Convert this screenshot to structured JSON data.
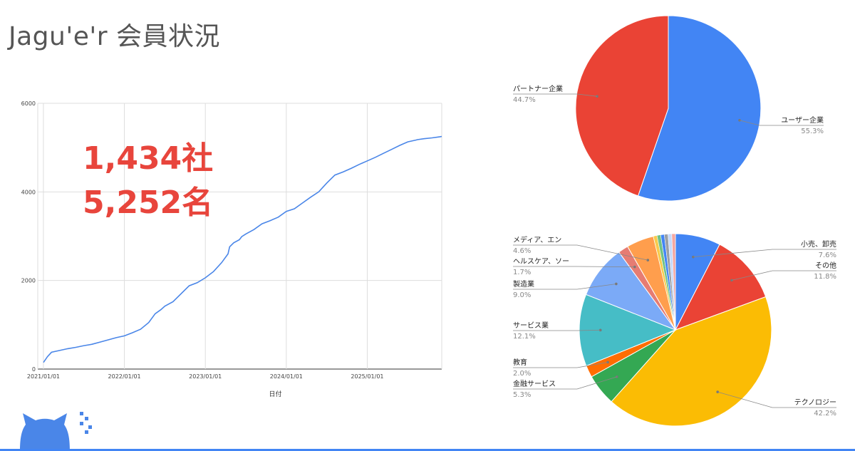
{
  "page": {
    "title": "Jagu'e'r 会員状況",
    "stat_companies": "1,434社",
    "stat_members": "5,252名"
  },
  "colors": {
    "line": "#4a86e8",
    "stats": "#e8453c",
    "accent": "#4285f4"
  },
  "chart_data": [
    {
      "type": "line",
      "xlabel": "日付",
      "ylabel": "",
      "ylim": [
        0,
        6000
      ],
      "yticks": [
        0,
        2000,
        4000,
        6000
      ],
      "xticks": [
        "2021/01/01",
        "2022/01/01",
        "2023/01/01",
        "2024/01/01",
        "2025/01/01"
      ],
      "grid": true,
      "series": [
        {
          "x": [
            2021.0,
            2021.05,
            2021.1,
            2021.2,
            2021.3,
            2021.4,
            2021.5,
            2021.6,
            2021.7,
            2021.8,
            2021.9,
            2022.0,
            2022.1,
            2022.2,
            2022.3,
            2022.38,
            2022.45,
            2022.5,
            2022.6,
            2022.7,
            2022.8,
            2022.9,
            2023.0,
            2023.1,
            2023.2,
            2023.28,
            2023.3,
            2023.35,
            2023.42,
            2023.45,
            2023.5,
            2023.6,
            2023.7,
            2023.8,
            2023.9,
            2024.0,
            2024.1,
            2024.2,
            2024.3,
            2024.4,
            2024.5,
            2024.6,
            2024.7,
            2024.8,
            2024.9,
            2025.0,
            2025.1,
            2025.2,
            2025.3,
            2025.4,
            2025.5,
            2025.6,
            2025.62,
            2025.7,
            2025.8,
            2025.9,
            2025.92
          ],
          "values": [
            150,
            280,
            380,
            420,
            460,
            490,
            530,
            560,
            610,
            660,
            710,
            750,
            820,
            900,
            1050,
            1250,
            1340,
            1420,
            1520,
            1700,
            1880,
            1950,
            2060,
            2200,
            2400,
            2600,
            2760,
            2850,
            2920,
            2990,
            3050,
            3150,
            3280,
            3350,
            3430,
            3560,
            3620,
            3750,
            3880,
            4000,
            4200,
            4380,
            4450,
            4530,
            4620,
            4700,
            4780,
            4870,
            4960,
            5050,
            5130,
            5170,
            5180,
            5200,
            5220,
            5245,
            5252
          ]
        }
      ]
    },
    {
      "type": "pie",
      "labels": [
        "ユーザー企業",
        "パートナー企業"
      ],
      "values": [
        55.3,
        44.7
      ],
      "percent_labels": [
        "55.3%",
        "44.7%"
      ],
      "colors": [
        "#4285f4",
        "#ea4335"
      ]
    },
    {
      "type": "pie",
      "labels": [
        "小売、卸売",
        "その他",
        "テクノロジー",
        "金融サービス",
        "教育",
        "サービス業",
        "製造業",
        "ヘルスケア、ソー",
        "メディア、エン"
      ],
      "values": [
        7.6,
        11.8,
        42.2,
        5.3,
        2.0,
        12.1,
        9.0,
        1.7,
        4.6
      ],
      "percent_labels": [
        "7.6%",
        "11.8%",
        "42.2%",
        "5.3%",
        "2.0%",
        "12.1%",
        "9.0%",
        "1.7%",
        "4.6%"
      ],
      "colors": [
        "#4285f4",
        "#ea4335",
        "#fbbc04",
        "#34a853",
        "#ff6d01",
        "#46bdc6",
        "#7baaf7",
        "#e67c73",
        "#ff9e4d"
      ],
      "other_small_colors": [
        "#f7cb4d",
        "#71c287",
        "#4285f4",
        "#9aa0a6",
        "#c6dafc",
        "#f4a7a1"
      ]
    }
  ]
}
